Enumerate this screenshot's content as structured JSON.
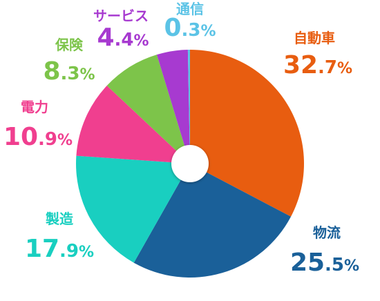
{
  "chart_data": {
    "type": "pie",
    "categories": [
      "自動車",
      "物流",
      "製造",
      "電力",
      "保険",
      "サービス",
      "通信"
    ],
    "values": [
      32.7,
      25.5,
      17.9,
      10.9,
      8.3,
      4.4,
      0.3
    ],
    "value_labels": [
      "32.7%",
      "25.5%",
      "17.9%",
      "10.9%",
      "8.3%",
      "4.4%",
      "0.3%"
    ],
    "colors": [
      "#e85d10",
      "#1a6099",
      "#19cfc0",
      "#f03f8f",
      "#7dc44a",
      "#a73ad0",
      "#5bc3e6"
    ]
  }
}
